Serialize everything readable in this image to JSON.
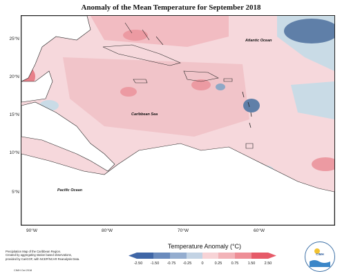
{
  "title": "Anomaly of the Mean Temperature for September 2018",
  "map": {
    "lat_labels": [
      "25°N",
      "20°N",
      "15°N",
      "10°N",
      "5°N"
    ],
    "lon_labels": [
      "90°W",
      "80°W",
      "70°W",
      "60°W"
    ],
    "places": {
      "atlantic": "Atlantic Ocean",
      "caribbean": "Caribbean Sea",
      "pacific": "Pacific Ocean"
    },
    "colors": {
      "background_anomaly": "#f6d8dc",
      "warm_light": "#f2bcc2",
      "warm_mid": "#ec9aa2",
      "cool_light": "#c9dbe6",
      "cool_mid": "#8fa8c6",
      "cool_dark": "#5f7fa8",
      "land": "#ffffff"
    }
  },
  "legend": {
    "title": "Temperature Anomaly (°C)",
    "ticks": [
      "-2.50",
      "-1.50",
      "-0.75",
      "-0.25",
      "0",
      "0.25",
      "0.75",
      "1.50",
      "2.50"
    ],
    "colors": [
      "#3f66a6",
      "#6a8bbd",
      "#94adcf",
      "#c3d3e4",
      "#ffffff",
      "#f7d3d6",
      "#f2b3b8",
      "#ee8e96",
      "#e65a68"
    ]
  },
  "footer": {
    "lines": [
      "Precipitation Map of the Caribbean Region.",
      "Created by aggregating station based observations,",
      "provided by CariCOF, with NCEP/NCAR Reanalysis Data."
    ],
    "stamp": "CIMH Oct 2018"
  },
  "logo": {
    "text": "CIMH"
  }
}
